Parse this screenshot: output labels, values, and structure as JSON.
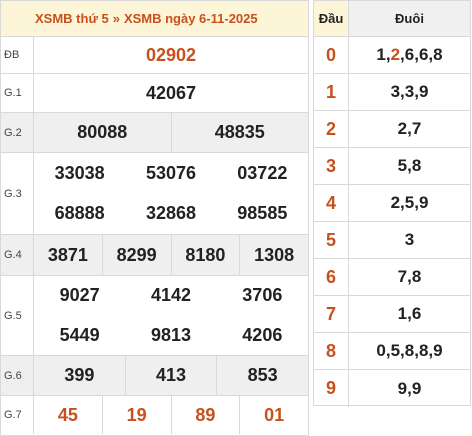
{
  "header": {
    "part1": "XSMB thứ 5",
    "separator": "»",
    "part2": "XSMB ngày 6-11-2025"
  },
  "prizes": {
    "db": {
      "label": "ĐB",
      "values": [
        "02902"
      ]
    },
    "g1": {
      "label": "G.1",
      "values": [
        "42067"
      ]
    },
    "g2": {
      "label": "G.2",
      "values": [
        "80088",
        "48835"
      ]
    },
    "g3": {
      "label": "G.3",
      "values": [
        "33038",
        "53076",
        "03722",
        "68888",
        "32868",
        "98585"
      ]
    },
    "g4": {
      "label": "G.4",
      "values": [
        "3871",
        "8299",
        "8180",
        "1308"
      ]
    },
    "g5": {
      "label": "G.5",
      "values": [
        "9027",
        "4142",
        "3706",
        "5449",
        "9813",
        "4206"
      ]
    },
    "g6": {
      "label": "G.6",
      "values": [
        "399",
        "413",
        "853"
      ]
    },
    "g7": {
      "label": "G.7",
      "values": [
        "45",
        "19",
        "89",
        "01"
      ]
    }
  },
  "loto": {
    "head_label": "Đầu",
    "tail_label": "Đuôi",
    "rows": [
      {
        "head": "0",
        "tail_pre": "1,",
        "tail_hl": "2",
        "tail_post": ",6,6,8"
      },
      {
        "head": "1",
        "tail": "3,3,9"
      },
      {
        "head": "2",
        "tail": "2,7"
      },
      {
        "head": "3",
        "tail": "5,8"
      },
      {
        "head": "4",
        "tail": "2,5,9"
      },
      {
        "head": "5",
        "tail": "3"
      },
      {
        "head": "6",
        "tail": "7,8"
      },
      {
        "head": "7",
        "tail": "1,6"
      },
      {
        "head": "8",
        "tail": "0,5,8,8,9"
      },
      {
        "head": "9",
        "tail": "9,9"
      }
    ]
  },
  "colors": {
    "accent": "#c8501c",
    "header_bg": "#fcf5d8",
    "stripe_bg": "#efefef",
    "border": "#d9d9d9"
  }
}
